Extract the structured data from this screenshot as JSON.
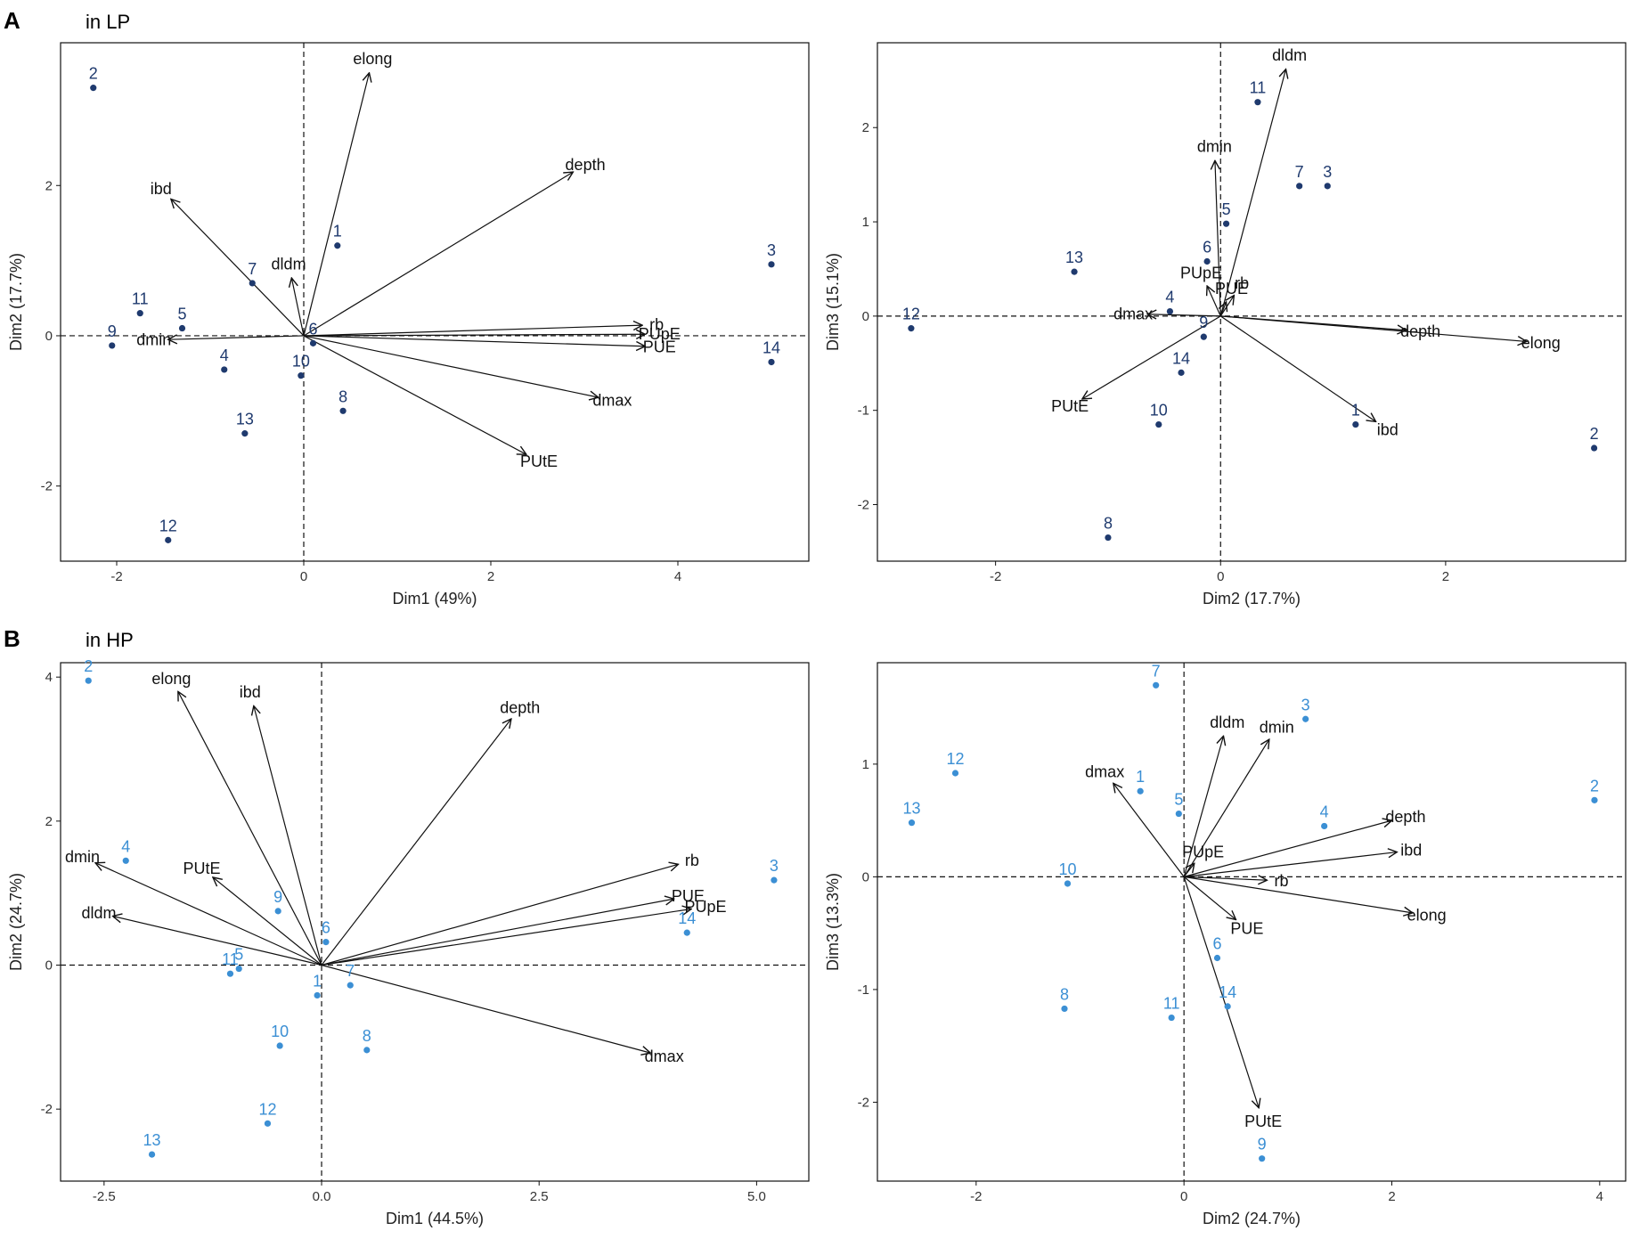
{
  "panel_sections": [
    {
      "letter": "A",
      "title": "in LP"
    },
    {
      "letter": "B",
      "title": "in HP"
    }
  ],
  "colors": {
    "lp_points": "#1f3a6e",
    "hp_points": "#3b8fd4",
    "arrows": "#111111"
  },
  "chart_data": [
    {
      "type": "scatter",
      "subtype": "pca-biplot",
      "section": "A",
      "xlabel": "Dim1 (49%)",
      "ylabel": "Dim2 (17.7%)",
      "xlim": [
        -2.6,
        5.4
      ],
      "ylim": [
        -3.0,
        3.9
      ],
      "xticks": [
        -2,
        0,
        2,
        4
      ],
      "yticks": [
        -2,
        0,
        2
      ],
      "points": [
        {
          "label": "1",
          "x": 0.36,
          "y": 1.2
        },
        {
          "label": "2",
          "x": -2.25,
          "y": 3.3
        },
        {
          "label": "3",
          "x": 5.0,
          "y": 0.95
        },
        {
          "label": "4",
          "x": -0.85,
          "y": -0.45
        },
        {
          "label": "5",
          "x": -1.3,
          "y": 0.1
        },
        {
          "label": "6",
          "x": 0.1,
          "y": -0.1
        },
        {
          "label": "7",
          "x": -0.55,
          "y": 0.7
        },
        {
          "label": "8",
          "x": 0.42,
          "y": -1.0
        },
        {
          "label": "9",
          "x": -2.05,
          "y": -0.13
        },
        {
          "label": "10",
          "x": -0.03,
          "y": -0.53
        },
        {
          "label": "11",
          "x": -1.75,
          "y": 0.3
        },
        {
          "label": "12",
          "x": -1.45,
          "y": -2.72
        },
        {
          "label": "13",
          "x": -0.63,
          "y": -1.3
        },
        {
          "label": "14",
          "x": 5.0,
          "y": -0.35
        }
      ],
      "vectors": [
        {
          "label": "elong",
          "x": 0.7,
          "y": 3.5
        },
        {
          "label": "depth",
          "x": 2.88,
          "y": 2.18
        },
        {
          "label": "ibd",
          "x": -1.42,
          "y": 1.82
        },
        {
          "label": "dldm",
          "x": -0.13,
          "y": 0.77
        },
        {
          "label": "rb",
          "x": 3.62,
          "y": 0.14
        },
        {
          "label": "PUpE",
          "x": 3.65,
          "y": 0.02
        },
        {
          "label": "PUE",
          "x": 3.65,
          "y": -0.14
        },
        {
          "label": "dmin",
          "x": -1.45,
          "y": -0.05
        },
        {
          "label": "dmax",
          "x": 3.15,
          "y": -0.82
        },
        {
          "label": "PUtE",
          "x": 2.38,
          "y": -1.58
        }
      ]
    },
    {
      "type": "scatter",
      "subtype": "pca-biplot",
      "section": "A",
      "xlabel": "Dim2 (17.7%)",
      "ylabel": "Dim3 (15.1%)",
      "xlim": [
        -3.05,
        3.6
      ],
      "ylim": [
        -2.6,
        2.9
      ],
      "xticks": [
        -2,
        0,
        2
      ],
      "yticks": [
        -2,
        -1,
        0,
        1,
        2
      ],
      "points": [
        {
          "label": "1",
          "x": 1.2,
          "y": -1.15
        },
        {
          "label": "2",
          "x": 3.32,
          "y": -1.4
        },
        {
          "label": "3",
          "x": 0.95,
          "y": 1.38
        },
        {
          "label": "4",
          "x": -0.45,
          "y": 0.05
        },
        {
          "label": "5",
          "x": 0.05,
          "y": 0.98
        },
        {
          "label": "6",
          "x": -0.12,
          "y": 0.58
        },
        {
          "label": "7",
          "x": 0.7,
          "y": 1.38
        },
        {
          "label": "8",
          "x": -1.0,
          "y": -2.35
        },
        {
          "label": "9",
          "x": -0.15,
          "y": -0.22
        },
        {
          "label": "10",
          "x": -0.55,
          "y": -1.15
        },
        {
          "label": "11",
          "x": 0.33,
          "y": 2.27
        },
        {
          "label": "12",
          "x": -2.75,
          "y": -0.13
        },
        {
          "label": "13",
          "x": -1.3,
          "y": 0.47
        },
        {
          "label": "14",
          "x": -0.35,
          "y": -0.6
        }
      ],
      "vectors": [
        {
          "label": "dldm",
          "x": 0.58,
          "y": 2.62
        },
        {
          "label": "dmin",
          "x": -0.05,
          "y": 1.65
        },
        {
          "label": "PUpE",
          "x": -0.12,
          "y": 0.32
        },
        {
          "label": "PUE",
          "x": 0.05,
          "y": 0.15
        },
        {
          "label": "rb",
          "x": 0.12,
          "y": 0.22
        },
        {
          "label": "dmax",
          "x": -0.65,
          "y": 0.02
        },
        {
          "label": "depth",
          "x": 1.65,
          "y": -0.15
        },
        {
          "label": "elong",
          "x": 2.72,
          "y": -0.27
        },
        {
          "label": "PUtE",
          "x": -1.23,
          "y": -0.88
        },
        {
          "label": "ibd",
          "x": 1.38,
          "y": -1.12
        }
      ]
    },
    {
      "type": "scatter",
      "subtype": "pca-biplot",
      "section": "B",
      "xlabel": "Dim1 (44.5%)",
      "ylabel": "Dim2 (24.7%)",
      "xlim": [
        -3.0,
        5.6
      ],
      "ylim": [
        -3.0,
        4.2
      ],
      "xticks": [
        -2.5,
        0.0,
        2.5,
        5.0
      ],
      "xtick_labels": [
        "-2.5",
        "0.0",
        "2.5",
        "5.0"
      ],
      "yticks": [
        -2,
        0,
        2,
        4
      ],
      "points": [
        {
          "label": "1",
          "x": -0.05,
          "y": -0.42
        },
        {
          "label": "2",
          "x": -2.68,
          "y": 3.95
        },
        {
          "label": "3",
          "x": 5.2,
          "y": 1.18
        },
        {
          "label": "4",
          "x": -2.25,
          "y": 1.45
        },
        {
          "label": "5",
          "x": -0.95,
          "y": -0.05
        },
        {
          "label": "6",
          "x": 0.05,
          "y": 0.32
        },
        {
          "label": "7",
          "x": 0.33,
          "y": -0.28
        },
        {
          "label": "8",
          "x": 0.52,
          "y": -1.18
        },
        {
          "label": "9",
          "x": -0.5,
          "y": 0.75
        },
        {
          "label": "10",
          "x": -0.48,
          "y": -1.12
        },
        {
          "label": "11",
          "x": -1.05,
          "y": -0.12
        },
        {
          "label": "12",
          "x": -0.62,
          "y": -2.2
        },
        {
          "label": "13",
          "x": -1.95,
          "y": -2.63
        },
        {
          "label": "14",
          "x": 4.2,
          "y": 0.45
        }
      ],
      "vectors": [
        {
          "label": "elong",
          "x": -1.65,
          "y": 3.8
        },
        {
          "label": "ibd",
          "x": -0.78,
          "y": 3.6
        },
        {
          "label": "depth",
          "x": 2.18,
          "y": 3.42
        },
        {
          "label": "rb",
          "x": 4.1,
          "y": 1.4
        },
        {
          "label": "PUE",
          "x": 4.05,
          "y": 0.92
        },
        {
          "label": "PUpE",
          "x": 4.25,
          "y": 0.78
        },
        {
          "label": "dmin",
          "x": -2.6,
          "y": 1.42
        },
        {
          "label": "PUtE",
          "x": -1.25,
          "y": 1.22
        },
        {
          "label": "dldm",
          "x": -2.4,
          "y": 0.68
        },
        {
          "label": "dmax",
          "x": 3.78,
          "y": -1.22
        }
      ]
    },
    {
      "type": "scatter",
      "subtype": "pca-biplot",
      "section": "B",
      "xlabel": "Dim2 (24.7%)",
      "ylabel": "Dim3 (13.3%)",
      "xlim": [
        -2.95,
        4.25
      ],
      "ylim": [
        -2.7,
        1.9
      ],
      "xticks": [
        -2,
        0,
        2,
        4
      ],
      "yticks": [
        -2,
        -1,
        0,
        1
      ],
      "points": [
        {
          "label": "1",
          "x": -0.42,
          "y": 0.76
        },
        {
          "label": "2",
          "x": 3.95,
          "y": 0.68
        },
        {
          "label": "3",
          "x": 1.17,
          "y": 1.4
        },
        {
          "label": "4",
          "x": 1.35,
          "y": 0.45
        },
        {
          "label": "5",
          "x": -0.05,
          "y": 0.56
        },
        {
          "label": "6",
          "x": 0.32,
          "y": -0.72
        },
        {
          "label": "7",
          "x": -0.27,
          "y": 1.7
        },
        {
          "label": "8",
          "x": -1.15,
          "y": -1.17
        },
        {
          "label": "9",
          "x": 0.75,
          "y": -2.5
        },
        {
          "label": "10",
          "x": -1.12,
          "y": -0.06
        },
        {
          "label": "11",
          "x": -0.12,
          "y": -1.25
        },
        {
          "label": "12",
          "x": -2.2,
          "y": 0.92
        },
        {
          "label": "13",
          "x": -2.62,
          "y": 0.48
        },
        {
          "label": "14",
          "x": 0.42,
          "y": -1.15
        }
      ],
      "vectors": [
        {
          "label": "dldm",
          "x": 0.38,
          "y": 1.25
        },
        {
          "label": "dmin",
          "x": 0.82,
          "y": 1.22
        },
        {
          "label": "dmax",
          "x": -0.68,
          "y": 0.83
        },
        {
          "label": "PUpE",
          "x": 0.1,
          "y": 0.12
        },
        {
          "label": "depth",
          "x": 2.0,
          "y": 0.5
        },
        {
          "label": "ibd",
          "x": 2.05,
          "y": 0.22
        },
        {
          "label": "rb",
          "x": 0.8,
          "y": -0.03
        },
        {
          "label": "PUE",
          "x": 0.5,
          "y": -0.38
        },
        {
          "label": "elong",
          "x": 2.2,
          "y": -0.32
        },
        {
          "label": "PUtE",
          "x": 0.72,
          "y": -2.05
        }
      ]
    }
  ]
}
